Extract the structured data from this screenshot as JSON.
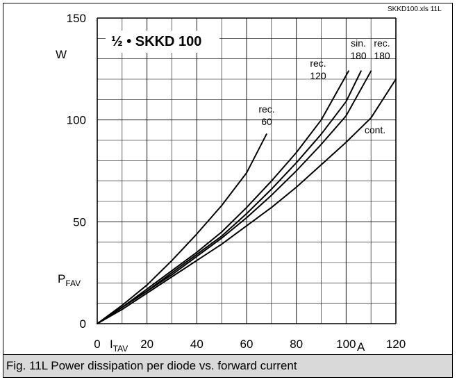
{
  "source_tag": "SKKD100.xls 11L",
  "figure_caption": "Fig. 11L Power dissipation per diode vs. forward current",
  "chart_data": {
    "type": "line",
    "title": "½ • SKKD 100",
    "xlim": [
      0,
      120
    ],
    "ylim": [
      0,
      150
    ],
    "x_ticks": [
      "0",
      "20",
      "40",
      "60",
      "80",
      "100",
      "120"
    ],
    "y_ticks": [
      "0",
      "50",
      "100",
      "150"
    ],
    "xlabel": "I",
    "xlabel_sub": "TAV",
    "xunit": "A",
    "ylabel": "P",
    "ylabel_sub": "FAV",
    "yunit": "W",
    "grid": true,
    "series": [
      {
        "name": "rec. 60",
        "label_lines": [
          "rec.",
          "60"
        ],
        "x": [
          0,
          10,
          20,
          30,
          40,
          50,
          60,
          68
        ],
        "y": [
          0,
          9,
          19,
          31,
          44,
          58,
          74,
          93
        ]
      },
      {
        "name": "rec. 120",
        "label_lines": [
          "rec.",
          "120"
        ],
        "x": [
          0,
          10,
          20,
          30,
          40,
          50,
          60,
          70,
          80,
          90,
          101
        ],
        "y": [
          0,
          8,
          17,
          26,
          35,
          45,
          57,
          70,
          84,
          100,
          124
        ]
      },
      {
        "name": "sin. 180",
        "label_lines": [
          "sin.",
          "180"
        ],
        "x": [
          0,
          10,
          20,
          30,
          40,
          50,
          60,
          70,
          80,
          90,
          100,
          106
        ],
        "y": [
          0,
          8,
          16,
          25,
          34,
          43,
          54,
          66,
          79,
          93,
          109,
          124
        ]
      },
      {
        "name": "rec. 180",
        "label_lines": [
          "rec.",
          "180"
        ],
        "x": [
          0,
          10,
          20,
          30,
          40,
          50,
          60,
          70,
          80,
          90,
          100,
          110
        ],
        "y": [
          0,
          8,
          16,
          24,
          33,
          42,
          52,
          63,
          75,
          88,
          102,
          124
        ]
      },
      {
        "name": "cont.",
        "label_lines": [
          "cont."
        ],
        "x": [
          0,
          10,
          20,
          30,
          40,
          50,
          60,
          70,
          80,
          90,
          100,
          110,
          120
        ],
        "y": [
          0,
          7,
          15,
          23,
          31,
          39,
          48,
          57,
          67,
          78,
          89,
          101,
          120
        ]
      }
    ]
  }
}
